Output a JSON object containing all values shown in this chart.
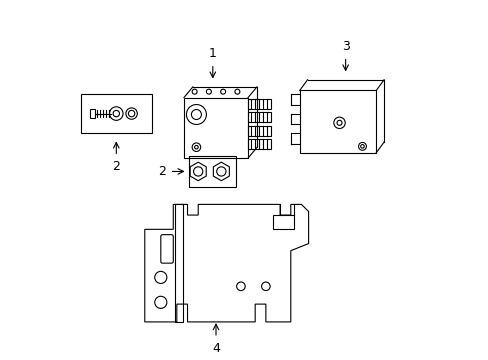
{
  "title": "",
  "background_color": "#ffffff",
  "line_color": "#000000",
  "label_color": "#000000",
  "parts": [
    {
      "id": "1",
      "label": "1"
    },
    {
      "id": "2a",
      "label": "2"
    },
    {
      "id": "2b",
      "label": "2"
    },
    {
      "id": "3",
      "label": "3"
    },
    {
      "id": "4",
      "label": "4"
    }
  ],
  "figsize": [
    4.89,
    3.6
  ],
  "dpi": 100
}
